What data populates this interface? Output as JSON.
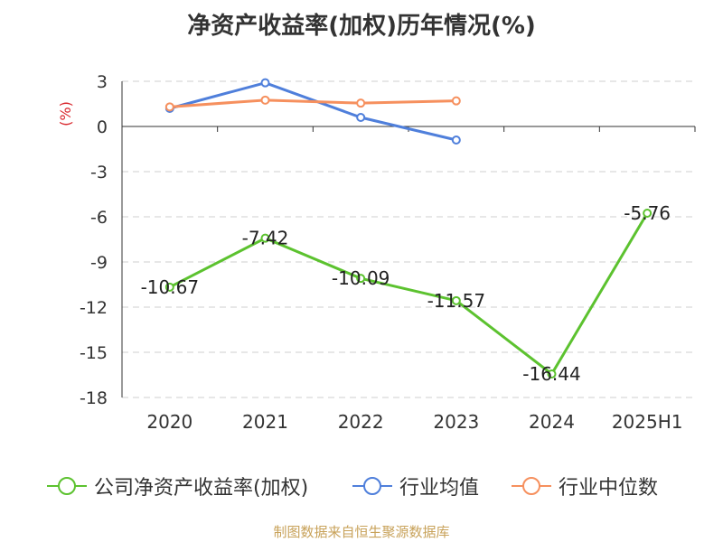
{
  "title": "净资产收益率(加权)历年情况(%)",
  "footer": "制图数据来自恒生聚源数据库",
  "chart_data": {
    "type": "line",
    "title": "净资产收益率(加权)历年情况(%)",
    "ylabel": "(%)",
    "xlabel": "",
    "categories": [
      "2020",
      "2021",
      "2022",
      "2023",
      "2024",
      "2025H1"
    ],
    "ylim": [
      -18,
      3
    ],
    "yticks": [
      3,
      0,
      -3,
      -6,
      -9,
      -12,
      -15,
      -18
    ],
    "grid": true,
    "legend_position": "bottom",
    "series": [
      {
        "name": "公司净资产收益率(加权)",
        "color": "#5cc22f",
        "values": [
          -10.67,
          -7.42,
          -10.09,
          -11.57,
          -16.44,
          -5.76
        ],
        "show_labels": true
      },
      {
        "name": "行业均值",
        "color": "#4f7fdb",
        "values": [
          1.2,
          2.9,
          0.6,
          -0.9,
          null,
          null
        ],
        "show_labels": false
      },
      {
        "name": "行业中位数",
        "color": "#f6905e",
        "values": [
          1.3,
          1.75,
          1.55,
          1.7,
          null,
          null
        ],
        "show_labels": false
      }
    ]
  }
}
